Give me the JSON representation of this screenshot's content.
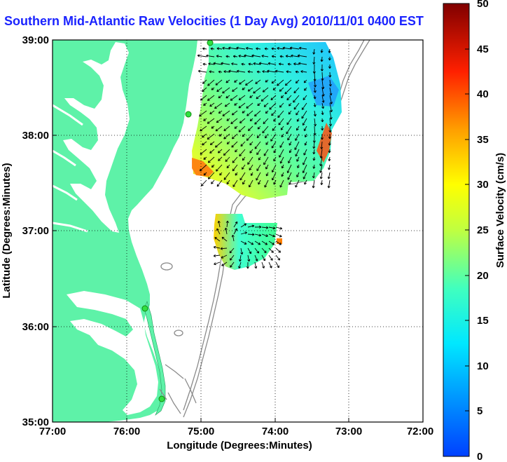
{
  "title": "Southern Mid-Atlantic Raw Velocities (1 Day Avg) 2010/11/01 0400 EST",
  "map": {
    "xlabel": "Longitude (Degrees:Minutes)",
    "ylabel": "Latitude (Degrees:Minutes)",
    "lon_ticks": [
      "77:00",
      "76:00",
      "75:00",
      "74:00",
      "73:00",
      "72:00"
    ],
    "lat_ticks": [
      "39:00",
      "38:00",
      "37:00",
      "36:00",
      "35:00"
    ],
    "lon_range": [
      -77,
      -72
    ],
    "lat_range": [
      35,
      39
    ],
    "land_color": "#5ef2a8",
    "grid": "dotted",
    "station_markers": 4
  },
  "colorbar": {
    "label": "Surface Velocity (cm/s)",
    "min": 0,
    "max": 50,
    "ticks": [
      "50",
      "45",
      "40",
      "35",
      "30",
      "25",
      "20",
      "15",
      "10",
      "5",
      "0"
    ],
    "colormap": "jet"
  }
}
